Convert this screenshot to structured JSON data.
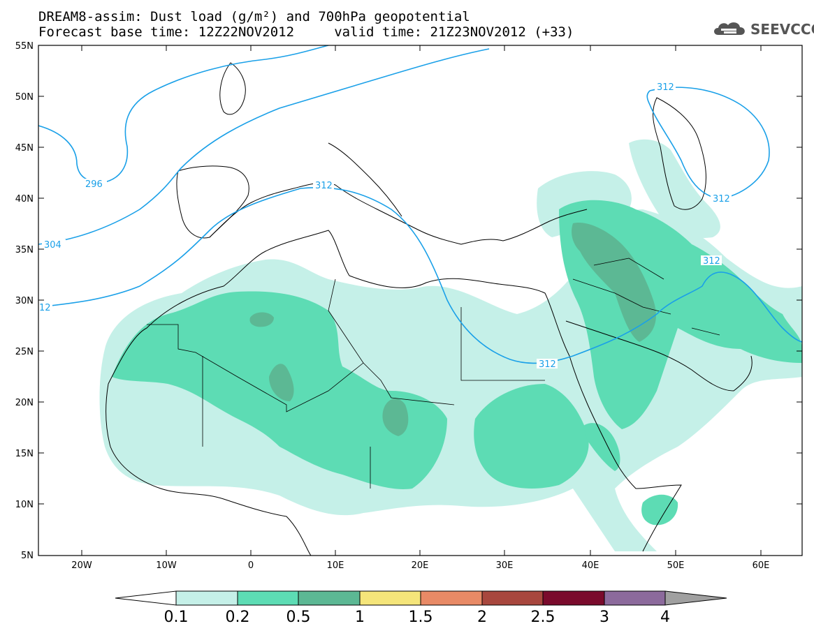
{
  "title": {
    "line1": "DREAM8-assim: Dust load (g/m²) and 700hPa geopotential",
    "line2": "Forecast base time: 12Z22NOV2012     valid time: 21Z23NOV2012 (+33)"
  },
  "logo": {
    "text": "SEEVCCC",
    "icon": "cloud-icon"
  },
  "axes": {
    "lon_ticks": [
      "20W",
      "10W",
      "0",
      "10E",
      "20E",
      "30E",
      "40E",
      "50E",
      "60E"
    ],
    "lat_ticks": [
      "55N",
      "50N",
      "45N",
      "40N",
      "35N",
      "30N",
      "25N",
      "20N",
      "15N",
      "10N",
      "5N"
    ]
  },
  "contour_labels": [
    "296",
    "304",
    "312",
    "312",
    "312",
    "312",
    "312",
    "12"
  ],
  "colorbar": {
    "labels": [
      "0.1",
      "0.2",
      "0.5",
      "1",
      "1.5",
      "2",
      "2.5",
      "3",
      "4"
    ],
    "colors": [
      "#c5f0e8",
      "#5ddcb4",
      "#5cb894",
      "#f5e57a",
      "#e88a66",
      "#a8473e",
      "#7a0a2c",
      "#8c6a9c",
      "#a0a0a0"
    ],
    "low_color": "#ffffff"
  },
  "colors": {
    "contour": "#1aa0e8",
    "dust_low": "#c5f0e8",
    "dust_mid": "#5ddcb4",
    "dust_high": "#5cb894"
  }
}
